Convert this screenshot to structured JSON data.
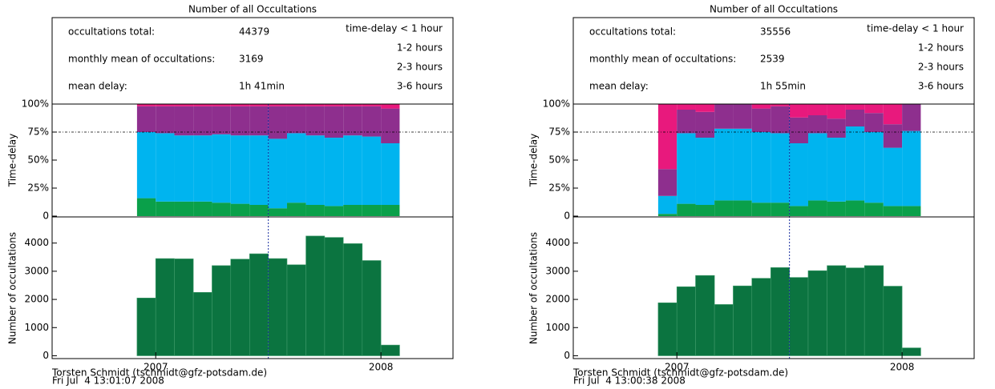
{
  "chart_data": [
    {
      "type": "bar",
      "title": "Number of all Occultations",
      "stats": [
        {
          "label": "occultations total:",
          "value": 44379
        },
        {
          "label": "monthly mean of occultations:",
          "value": 3169
        },
        {
          "label": "mean delay:",
          "value": "1h 41min"
        }
      ],
      "bins": [
        2006.917,
        2007.0,
        2007.083,
        2007.167,
        2007.25,
        2007.333,
        2007.417,
        2007.5,
        2007.583,
        2007.667,
        2007.75,
        2007.833,
        2007.917,
        2008.0,
        2008.083
      ],
      "xlim": [
        2006.54,
        2008.32
      ],
      "xticks": [
        2007,
        2008
      ],
      "marker_x": 2007.5,
      "delay": {
        "ylabel": "Time-delay",
        "ylim": [
          0,
          100
        ],
        "ref_y": 75,
        "yticks": [
          0,
          {
            "value": 25,
            "label": "25%"
          },
          {
            "value": 50,
            "label": "50%"
          },
          {
            "value": 75,
            "label": "75%"
          },
          {
            "value": 100,
            "label": "100%"
          }
        ],
        "series": [
          {
            "name": "time-delay < 1 hour",
            "color": "#0aa04a",
            "values": [
              16,
              13,
              13,
              13,
              12,
              11,
              10,
              7,
              12,
              10,
              9,
              10,
              10,
              10
            ]
          },
          {
            "name": "1-2 hours",
            "color": "#00b4ef",
            "values": [
              59,
              61,
              59,
              59,
              61,
              61,
              62,
              62,
              62,
              62,
              61,
              62,
              61,
              55
            ]
          },
          {
            "name": "2-3 hours",
            "color": "#8e2f8e",
            "values": [
              23,
              24,
              26,
              26,
              25,
              26,
              26,
              29,
              24,
              26,
              28,
              26,
              27,
              31
            ]
          },
          {
            "name": "3-6 hours",
            "color": "#e8197d",
            "values": [
              2,
              2,
              2,
              2,
              2,
              2,
              2,
              2,
              2,
              2,
              2,
              2,
              2,
              4
            ]
          }
        ]
      },
      "counts": {
        "ylabel": "Number of occultations",
        "ylim": [
          -100,
          4900
        ],
        "yticks": [
          0,
          1000,
          2000,
          3000,
          4000
        ],
        "color": "#0b7440",
        "values": [
          2050,
          3450,
          3440,
          2250,
          3200,
          3430,
          3620,
          3450,
          3230,
          4250,
          4200,
          3980,
          3380,
          380
        ]
      },
      "footer": [
        "Torsten Schmidt (tschmidt@gfz-potsdam.de)",
        "Fri Jul  4 13:01:07 2008"
      ]
    },
    {
      "type": "bar",
      "title": "Number of all Occultations",
      "stats": [
        {
          "label": "occultations total:",
          "value": 35556
        },
        {
          "label": "monthly mean of occultations:",
          "value": 2539
        },
        {
          "label": "mean delay:",
          "value": "1h 55min"
        }
      ],
      "bins": [
        2006.917,
        2007.0,
        2007.083,
        2007.167,
        2007.25,
        2007.333,
        2007.417,
        2007.5,
        2007.583,
        2007.667,
        2007.75,
        2007.833,
        2007.917,
        2008.0,
        2008.083
      ],
      "xlim": [
        2006.54,
        2008.32
      ],
      "xticks": [
        2007,
        2008
      ],
      "marker_x": 2007.5,
      "delay": {
        "ylabel": "Time-delay",
        "ylim": [
          0,
          100
        ],
        "ref_y": 75,
        "yticks": [
          0,
          {
            "value": 25,
            "label": "25%"
          },
          {
            "value": 50,
            "label": "50%"
          },
          {
            "value": 75,
            "label": "75%"
          },
          {
            "value": 100,
            "label": "100%"
          }
        ],
        "series": [
          {
            "name": "time-delay < 1 hour",
            "color": "#0aa04a",
            "values": [
              2,
              11,
              10,
              14,
              14,
              12,
              12,
              9,
              14,
              13,
              14,
              12,
              9,
              9
            ]
          },
          {
            "name": "1-2 hours",
            "color": "#00b4ef",
            "values": [
              16,
              63,
              60,
              64,
              64,
              63,
              62,
              56,
              60,
              57,
              66,
              63,
              52,
              67
            ]
          },
          {
            "name": "2-3 hours",
            "color": "#8e2f8e",
            "values": [
              24,
              21,
              23,
              22,
              22,
              21,
              24,
              23,
              16,
              17,
              15,
              17,
              21,
              24
            ]
          },
          {
            "name": "3-6 hours",
            "color": "#e8197d",
            "values": [
              58,
              5,
              7,
              0,
              0,
              4,
              2,
              12,
              10,
              13,
              5,
              8,
              18,
              0
            ]
          }
        ]
      },
      "counts": {
        "ylabel": "Number of occultations",
        "ylim": [
          -100,
          4900
        ],
        "yticks": [
          0,
          1000,
          2000,
          3000,
          4000
        ],
        "color": "#0b7440",
        "values": [
          1880,
          2450,
          2850,
          1820,
          2480,
          2750,
          3130,
          2780,
          3020,
          3200,
          3120,
          3200,
          2470,
          280
        ]
      },
      "footer": [
        "Torsten Schmidt (tschmidt@gfz-potsdam.de)",
        "Fri Jul  4 13:00:38 2008"
      ]
    }
  ]
}
